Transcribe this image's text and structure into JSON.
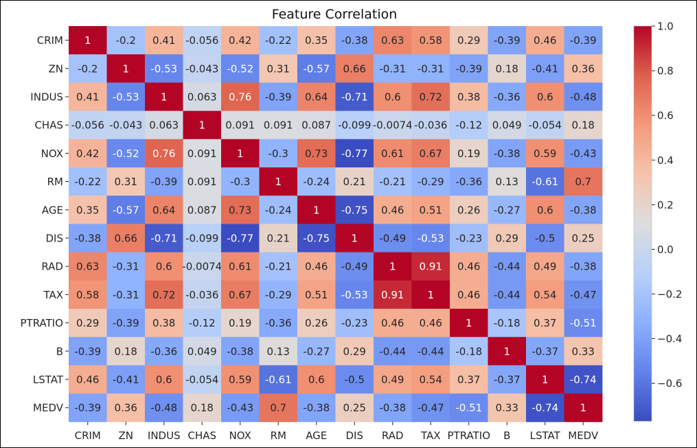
{
  "chart_data": {
    "type": "heatmap",
    "title": "Feature Correlation",
    "xlabel": "",
    "ylabel": "",
    "labels": [
      "CRIM",
      "ZN",
      "INDUS",
      "CHAS",
      "NOX",
      "RM",
      "AGE",
      "DIS",
      "RAD",
      "TAX",
      "PTRATIO",
      "B",
      "LSTAT",
      "MEDV"
    ],
    "matrix": [
      [
        "1",
        "-0.2",
        "0.41",
        "-0.056",
        "0.42",
        "-0.22",
        "0.35",
        "-0.38",
        "0.63",
        "0.58",
        "0.29",
        "-0.39",
        "0.46",
        "-0.39"
      ],
      [
        "-0.2",
        "1",
        "-0.53",
        "-0.043",
        "-0.52",
        "0.31",
        "-0.57",
        "0.66",
        "-0.31",
        "-0.31",
        "-0.39",
        "0.18",
        "-0.41",
        "0.36"
      ],
      [
        "0.41",
        "-0.53",
        "1",
        "0.063",
        "0.76",
        "-0.39",
        "0.64",
        "-0.71",
        "0.6",
        "0.72",
        "0.38",
        "-0.36",
        "0.6",
        "-0.48"
      ],
      [
        "-0.056",
        "-0.043",
        "0.063",
        "1",
        "0.091",
        "0.091",
        "0.087",
        "-0.099",
        "-0.0074",
        "-0.036",
        "-0.12",
        "0.049",
        "-0.054",
        "0.18"
      ],
      [
        "0.42",
        "-0.52",
        "0.76",
        "0.091",
        "1",
        "-0.3",
        "0.73",
        "-0.77",
        "0.61",
        "0.67",
        "0.19",
        "-0.38",
        "0.59",
        "-0.43"
      ],
      [
        "-0.22",
        "0.31",
        "-0.39",
        "0.091",
        "-0.3",
        "1",
        "-0.24",
        "0.21",
        "-0.21",
        "-0.29",
        "-0.36",
        "0.13",
        "-0.61",
        "0.7"
      ],
      [
        "0.35",
        "-0.57",
        "0.64",
        "0.087",
        "0.73",
        "-0.24",
        "1",
        "-0.75",
        "0.46",
        "0.51",
        "0.26",
        "-0.27",
        "0.6",
        "-0.38"
      ],
      [
        "-0.38",
        "0.66",
        "-0.71",
        "-0.099",
        "-0.77",
        "0.21",
        "-0.75",
        "1",
        "-0.49",
        "-0.53",
        "-0.23",
        "0.29",
        "-0.5",
        "0.25"
      ],
      [
        "0.63",
        "-0.31",
        "0.6",
        "-0.0074",
        "0.61",
        "-0.21",
        "0.46",
        "-0.49",
        "1",
        "0.91",
        "0.46",
        "-0.44",
        "0.49",
        "-0.38"
      ],
      [
        "0.58",
        "-0.31",
        "0.72",
        "-0.036",
        "0.67",
        "-0.29",
        "0.51",
        "-0.53",
        "0.91",
        "1",
        "0.46",
        "-0.44",
        "0.54",
        "-0.47"
      ],
      [
        "0.29",
        "-0.39",
        "0.38",
        "-0.12",
        "0.19",
        "-0.36",
        "0.26",
        "-0.23",
        "0.46",
        "0.46",
        "1",
        "-0.18",
        "0.37",
        "-0.51"
      ],
      [
        "-0.39",
        "0.18",
        "-0.36",
        "0.049",
        "-0.38",
        "0.13",
        "-0.27",
        "0.29",
        "-0.44",
        "-0.44",
        "-0.18",
        "1",
        "-0.37",
        "0.33"
      ],
      [
        "0.46",
        "-0.41",
        "0.6",
        "-0.054",
        "0.59",
        "-0.61",
        "0.6",
        "-0.5",
        "0.49",
        "0.54",
        "0.37",
        "-0.37",
        "1",
        "-0.74"
      ],
      [
        "-0.39",
        "0.36",
        "-0.48",
        "0.18",
        "-0.43",
        "0.7",
        "-0.38",
        "0.25",
        "-0.38",
        "-0.47",
        "-0.51",
        "0.33",
        "-0.74",
        "1"
      ]
    ],
    "colorbar": {
      "colormap": "coolwarm",
      "vmin": -0.77,
      "vmax": 1.0,
      "ticks": [
        1.0,
        0.8,
        0.6,
        0.4,
        0.2,
        0.0,
        -0.2,
        -0.4,
        -0.6
      ],
      "tick_labels": [
        "1.0",
        "0.8",
        "0.6",
        "0.4",
        "0.2",
        "0.0",
        "−0.2",
        "−0.4",
        "−0.6"
      ]
    },
    "grid": false,
    "legend": "colorbar-right",
    "colors": {
      "low": "#3b4cc0",
      "mid": "#dddddd",
      "high": "#b40426"
    }
  }
}
